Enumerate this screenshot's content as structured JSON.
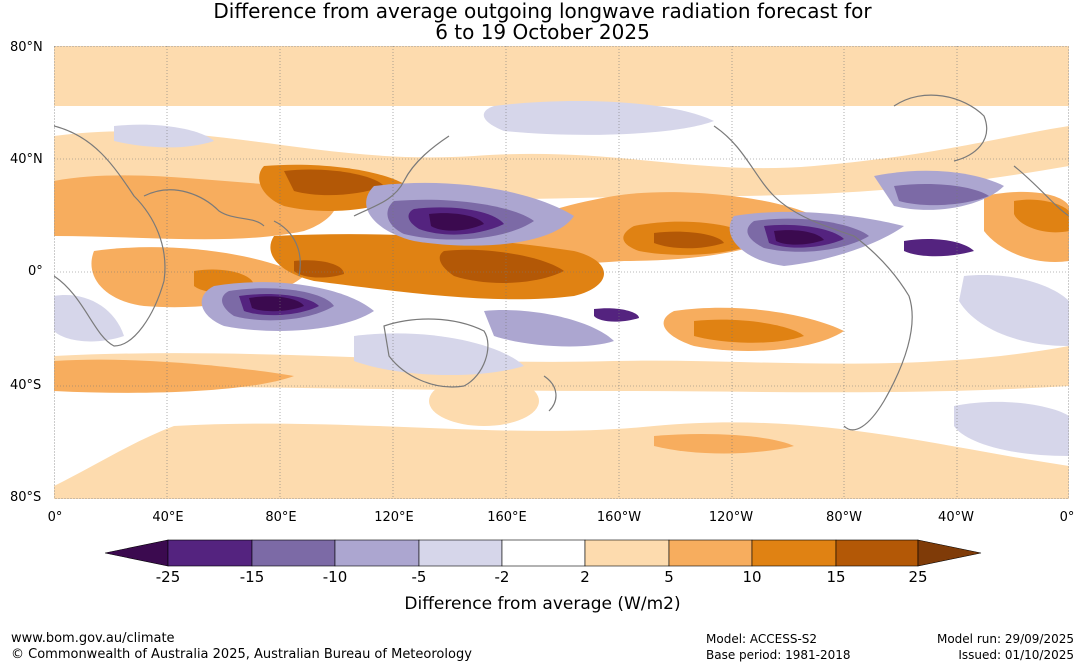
{
  "title": {
    "line1": "Difference from average outgoing longwave radiation forecast for",
    "line2": "6 to 19 October 2025"
  },
  "map": {
    "lat_labels": [
      "80°N",
      "40°N",
      "0°",
      "40°S",
      "80°S"
    ],
    "lon_labels": [
      "0°",
      "40°E",
      "80°E",
      "120°E",
      "160°E",
      "160°W",
      "120°W",
      "80°W",
      "40°W",
      "0°"
    ]
  },
  "colorbar": {
    "ticks": [
      "-25",
      "-15",
      "-10",
      "-5",
      "-2",
      "2",
      "5",
      "10",
      "15",
      "25"
    ],
    "colors": [
      "#3b0a4f",
      "#54237f",
      "#7c6aa6",
      "#aca6d0",
      "#d6d6ea",
      "#ffffff",
      "#fddbae",
      "#f7ad5e",
      "#e08213",
      "#b35806",
      "#7f3b08"
    ],
    "label": "Difference from average (W/m2)"
  },
  "footer": {
    "website": "www.bom.gov.au/climate",
    "copyright": "© Commonwealth of Australia 2025, Australian Bureau of Meteorology",
    "model": "Model: ACCESS-S2",
    "base_period": "Base period: 1981-2018",
    "model_run": "Model run: 29/09/2025",
    "issued": "Issued: 01/10/2025"
  }
}
